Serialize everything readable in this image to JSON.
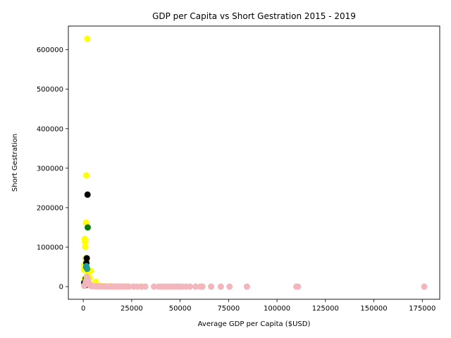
{
  "chart_data": {
    "type": "scatter",
    "title": "GDP per Capita vs Short Gestration 2015 - 2019",
    "xlabel": "Average GDP per Capita ($USD)",
    "ylabel": "Short Gestration",
    "xlim": [
      -7700,
      184000
    ],
    "ylim": [
      -32000,
      660000
    ],
    "xticks": [
      0,
      25000,
      50000,
      75000,
      100000,
      125000,
      150000,
      175000
    ],
    "yticks": [
      0,
      100000,
      200000,
      300000,
      400000,
      500000,
      600000
    ],
    "grid": false,
    "legend": "none",
    "series": [
      {
        "color": "#ffff00",
        "points": [
          [
            2100,
            628000
          ],
          [
            1600,
            282000
          ],
          [
            1500,
            162000
          ],
          [
            800,
            121000
          ],
          [
            900,
            113000
          ],
          [
            1000,
            101000
          ],
          [
            1200,
            72000
          ],
          [
            1500,
            65000
          ],
          [
            400,
            43000
          ],
          [
            3800,
            40000
          ],
          [
            2000,
            38000
          ],
          [
            2500,
            30000
          ],
          [
            700,
            20000
          ],
          [
            6500,
            12000
          ],
          [
            1800,
            10000
          ],
          [
            3000,
            8000
          ],
          [
            5000,
            5000
          ],
          [
            1200,
            3000
          ],
          [
            9000,
            2000
          ],
          [
            14000,
            1000
          ],
          [
            22000,
            500
          ],
          [
            30000,
            300
          ],
          [
            2600,
            15000
          ],
          [
            4200,
            6000
          ],
          [
            3300,
            22000
          ],
          [
            600,
            55000
          ],
          [
            11000,
            1500
          ],
          [
            7500,
            3500
          ]
        ]
      },
      {
        "color": "#000000",
        "points": [
          [
            2200,
            233000
          ],
          [
            1800,
            72000
          ],
          [
            1600,
            60000
          ],
          [
            500,
            10000
          ],
          [
            2500,
            5000
          ],
          [
            1000,
            3000
          ]
        ]
      },
      {
        "color": "#0b7a0b",
        "points": [
          [
            2300,
            150000
          ],
          [
            1500,
            50000
          ],
          [
            1200,
            20000
          ],
          [
            2000,
            8000
          ]
        ]
      },
      {
        "color": "#1f9c9c",
        "points": [
          [
            1600,
            52000
          ],
          [
            2000,
            45000
          ],
          [
            1100,
            12000
          ]
        ]
      },
      {
        "color": "#f2b6bc",
        "points": [
          [
            500,
            2000
          ],
          [
            1000,
            6000
          ],
          [
            1500,
            15000
          ],
          [
            1800,
            25000
          ],
          [
            2200,
            20000
          ],
          [
            2600,
            12000
          ],
          [
            3000,
            8000
          ],
          [
            3500,
            3000
          ],
          [
            4000,
            1500
          ],
          [
            5000,
            1200
          ],
          [
            6000,
            1000
          ],
          [
            7000,
            800
          ],
          [
            8000,
            700
          ],
          [
            9000,
            600
          ],
          [
            10000,
            500
          ],
          [
            11000,
            450
          ],
          [
            12000,
            400
          ],
          [
            13000,
            380
          ],
          [
            14000,
            350
          ],
          [
            15000,
            330
          ],
          [
            16000,
            300
          ],
          [
            17000,
            290
          ],
          [
            18000,
            280
          ],
          [
            19000,
            270
          ],
          [
            20000,
            260
          ],
          [
            21000,
            250
          ],
          [
            22000,
            240
          ],
          [
            23500,
            230
          ],
          [
            26000,
            220
          ],
          [
            28000,
            210
          ],
          [
            30000,
            200
          ],
          [
            32000,
            190
          ],
          [
            36500,
            180
          ],
          [
            39000,
            170
          ],
          [
            40500,
            160
          ],
          [
            42000,
            150
          ],
          [
            43500,
            140
          ],
          [
            45000,
            130
          ],
          [
            46500,
            120
          ],
          [
            48000,
            110
          ],
          [
            49500,
            100
          ],
          [
            51000,
            95
          ],
          [
            53000,
            90
          ],
          [
            55000,
            85
          ],
          [
            58000,
            80
          ],
          [
            60500,
            75
          ],
          [
            61500,
            70
          ],
          [
            66000,
            65
          ],
          [
            71000,
            60
          ],
          [
            75500,
            55
          ],
          [
            84500,
            50
          ],
          [
            110000,
            45
          ],
          [
            110800,
            40
          ],
          [
            176000,
            35
          ]
        ]
      }
    ]
  }
}
